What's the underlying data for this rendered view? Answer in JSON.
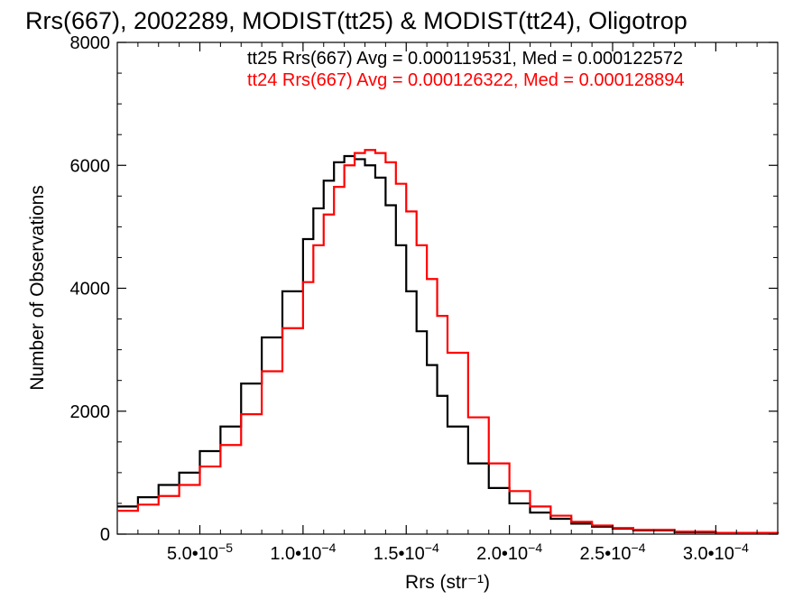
{
  "chart_data": {
    "type": "line",
    "title": "Rrs(667), 2002289, MODIST(tt25) & MODIST(tt24), Oligotrop",
    "xlabel": "Rrs (str⁻¹)",
    "ylabel": "Number of Observations",
    "xlim": [
      1e-05,
      0.00033
    ],
    "ylim": [
      0,
      8000
    ],
    "grid": false,
    "x_ticks": [
      {
        "value": 5e-05,
        "mantissa": "5.0•10",
        "exp": "−5"
      },
      {
        "value": 0.0001,
        "mantissa": "1.0•10",
        "exp": "−4"
      },
      {
        "value": 0.00015,
        "mantissa": "1.5•10",
        "exp": "−4"
      },
      {
        "value": 0.0002,
        "mantissa": "2.0•10",
        "exp": "−4"
      },
      {
        "value": 0.00025,
        "mantissa": "2.5•10",
        "exp": "−4"
      },
      {
        "value": 0.0003,
        "mantissa": "3.0•10",
        "exp": "−4"
      }
    ],
    "y_ticks": [
      {
        "value": 0,
        "label": "0"
      },
      {
        "value": 2000,
        "label": "2000"
      },
      {
        "value": 4000,
        "label": "4000"
      },
      {
        "value": 6000,
        "label": "6000"
      },
      {
        "value": 8000,
        "label": "8000"
      }
    ],
    "annotations": [
      "tt25 Rrs(667) Avg = 0.000119531, Med = 0.000122572",
      "tt24 Rrs(667) Avg = 0.000126322, Med = 0.000128894"
    ],
    "series": [
      {
        "color": "#000000",
        "x": [
          1e-05,
          2e-05,
          3e-05,
          4e-05,
          5e-05,
          6e-05,
          7e-05,
          8e-05,
          9e-05,
          0.0001,
          0.000105,
          0.00011,
          0.000115,
          0.00012,
          0.000125,
          0.00013,
          0.000135,
          0.00014,
          0.000145,
          0.00015,
          0.000155,
          0.00016,
          0.000165,
          0.00017,
          0.00018,
          0.00019,
          0.0002,
          0.00021,
          0.00022,
          0.00023,
          0.00024,
          0.00025,
          0.00026,
          0.00028,
          0.0003,
          0.00033
        ],
        "values": [
          450,
          600,
          800,
          1000,
          1350,
          1750,
          2450,
          3200,
          3950,
          4800,
          5300,
          5750,
          6050,
          6150,
          6100,
          6000,
          5800,
          5350,
          4700,
          3950,
          3300,
          2750,
          2250,
          1750,
          1150,
          750,
          500,
          350,
          250,
          170,
          120,
          90,
          60,
          30,
          15,
          5
        ]
      },
      {
        "color": "#ff0000",
        "x": [
          1e-05,
          2e-05,
          3e-05,
          4e-05,
          5e-05,
          6e-05,
          7e-05,
          8e-05,
          9e-05,
          0.0001,
          0.000105,
          0.00011,
          0.000115,
          0.00012,
          0.000125,
          0.00013,
          0.000135,
          0.00014,
          0.000145,
          0.00015,
          0.000155,
          0.00016,
          0.000165,
          0.00017,
          0.00018,
          0.00019,
          0.0002,
          0.00021,
          0.00022,
          0.00023,
          0.00024,
          0.00025,
          0.00026,
          0.00028,
          0.0003,
          0.00033
        ],
        "values": [
          380,
          480,
          620,
          800,
          1100,
          1450,
          1950,
          2650,
          3350,
          4100,
          4700,
          5200,
          5650,
          6000,
          6200,
          6250,
          6200,
          6050,
          5700,
          5250,
          4700,
          4150,
          3550,
          2950,
          1900,
          1150,
          700,
          450,
          300,
          200,
          140,
          100,
          70,
          40,
          20,
          8
        ]
      }
    ]
  }
}
